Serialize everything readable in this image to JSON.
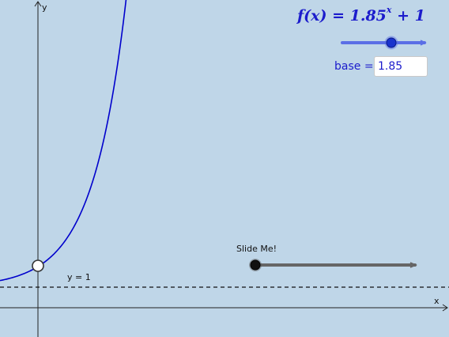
{
  "graph": {
    "function_label": "f(x) = 1.85",
    "function_exponent": "x",
    "function_tail": " + 1",
    "asymptote_label": "y = 1",
    "x_axis_label": "x",
    "y_axis_label": "y",
    "base_value": 1.85,
    "curve_color": "#0000cc"
  },
  "base_slider": {
    "label": "base =",
    "value": "1.85",
    "accent_color": "#5b6fe6"
  },
  "slide_me": {
    "label": "Slide Me!",
    "value_fraction": 0
  }
}
